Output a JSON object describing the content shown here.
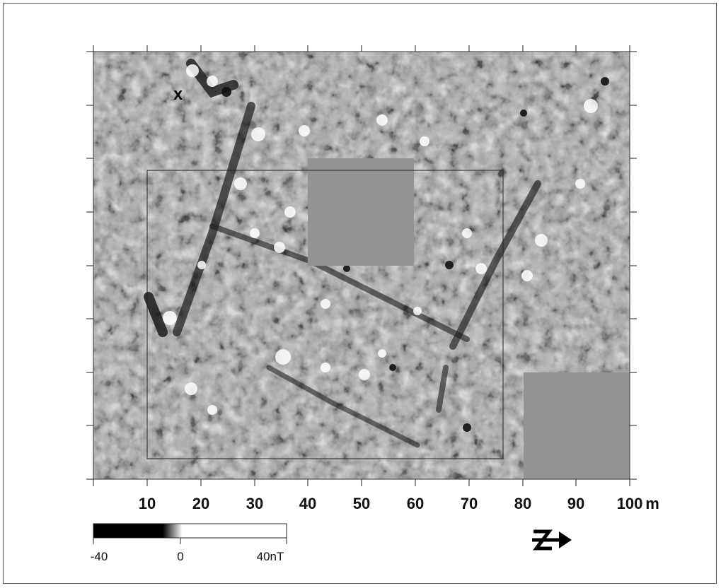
{
  "map": {
    "marker_label": "x",
    "x_axis": {
      "tick_labels": [
        "10",
        "20",
        "30",
        "40",
        "50",
        "60",
        "70",
        "80",
        "90",
        "100"
      ],
      "unit": "m"
    },
    "survey_box": {
      "from": 10,
      "to": 76
    },
    "masked_areas": [
      {
        "name": "masked-area-1",
        "x_from": 40,
        "x_to": 60
      },
      {
        "name": "masked-area-2",
        "x_from": 80,
        "x_to": 100
      }
    ],
    "colors": {
      "mask_gray": "#939393",
      "background_gray": "#a8a8a8"
    }
  },
  "colorbar": {
    "tick_labels": [
      "-40",
      "0",
      "40nT"
    ],
    "range": [
      -40,
      40
    ]
  },
  "north_arrow": {
    "icon": "north-arrow-icon"
  }
}
